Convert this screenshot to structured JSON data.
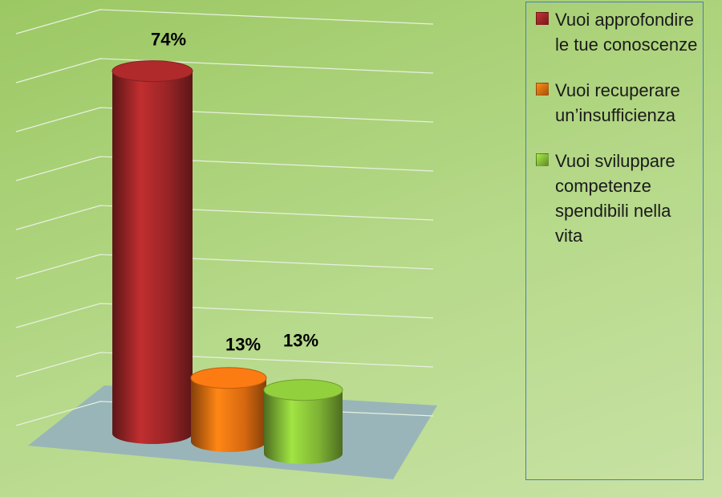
{
  "chart_data": {
    "type": "bar3d",
    "categories": [
      "Vuoi approfondire le tue conoscenze",
      "Vuoi recuperare un’insufficienza",
      "Vuoi sviluppare competenze spendibili nella vita"
    ],
    "values": [
      74,
      13,
      13
    ],
    "value_labels": [
      "74%",
      "13%",
      "13%"
    ],
    "colors": [
      "#a8282a",
      "#f07512",
      "#8cc63a"
    ],
    "ylim": [
      0,
      80
    ],
    "yticks": [
      0,
      10,
      20,
      30,
      40,
      50,
      60,
      70,
      80
    ],
    "grid": true
  }
}
